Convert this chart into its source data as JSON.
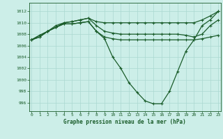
{
  "background_color": "#cceee8",
  "grid_color": "#aad8d0",
  "line_color": "#1a5c2a",
  "title": "Graphe pression niveau de la mer (hPa)",
  "ylim": [
    994.5,
    1013.5
  ],
  "yticks": [
    996,
    998,
    1000,
    1002,
    1004,
    1006,
    1008,
    1010,
    1012
  ],
  "xticks": [
    0,
    1,
    2,
    3,
    4,
    5,
    6,
    7,
    8,
    9,
    10,
    11,
    12,
    13,
    14,
    15,
    16,
    17,
    18,
    19,
    20,
    21,
    22,
    23
  ],
  "line1": [
    1007,
    1007.8,
    1008.5,
    1009.2,
    1010.0,
    1010.2,
    1010.5,
    1010.8,
    1010.2,
    1010.0,
    1010.0,
    1010.0,
    1010.0,
    1010.0,
    1010.0,
    1010.0,
    1010.0,
    1010.0,
    1010.0,
    1010.0,
    1010.0,
    1010.5,
    1011.2,
    1012.0
  ],
  "line2": [
    1007,
    1007.8,
    1008.5,
    1009.5,
    1010.0,
    1010.2,
    1010.5,
    1010.8,
    1009.5,
    1008.5,
    1008.2,
    1008.0,
    1008.0,
    1008.0,
    1008.0,
    1008.0,
    1008.0,
    1008.0,
    1008.0,
    1007.8,
    1007.5,
    1008.0,
    1009.5,
    1010.5
  ],
  "line3": [
    1007,
    1007.5,
    1008.5,
    1009.2,
    1009.8,
    1009.8,
    1010.0,
    1010.2,
    1008.5,
    1007.5,
    1007.2,
    1007.0,
    1007.0,
    1007.0,
    1007.0,
    1007.0,
    1007.0,
    1007.0,
    1007.0,
    1007.0,
    1007.0,
    1007.2,
    1007.5,
    1007.8
  ],
  "line4": [
    1007,
    1007.5,
    1008.5,
    1009.2,
    1009.8,
    1009.8,
    1010.0,
    1010.2,
    1008.5,
    1007.2,
    1004.0,
    1002.0,
    999.5,
    997.8,
    996.3,
    995.8,
    995.8,
    998.0,
    1001.5,
    1005.0,
    1007.0,
    1009.5,
    1010.5,
    1012.0
  ]
}
